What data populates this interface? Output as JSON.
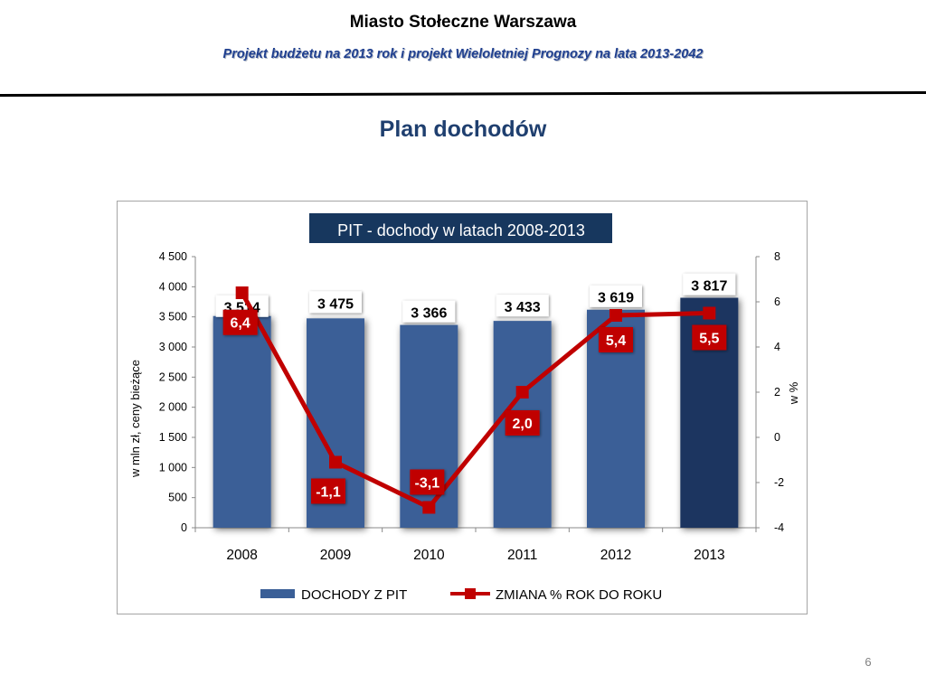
{
  "header": {
    "title": "Miasto Stołeczne Warszawa",
    "subtitle": "Projekt budżetu na 2013 rok i projekt Wieloletniej Prognozy na lata 2013-2042"
  },
  "slide": {
    "title": "Plan dochodów",
    "page_number": "6"
  },
  "colors": {
    "bar": "#3a5f97",
    "bar_highlight": "#1a3560",
    "line": "#c00000",
    "title_box": "#17375e",
    "subtitle": "#1f3f8f"
  },
  "chart_data": {
    "type": "bar",
    "title": "PIT - dochody w latach 2008-2013",
    "categories": [
      "2008",
      "2009",
      "2010",
      "2011",
      "2012",
      "2013"
    ],
    "ylabel": "w mln zł, ceny bieżące",
    "y2label": "w %",
    "ylim": [
      0,
      4500
    ],
    "y2lim": [
      -4,
      8
    ],
    "yticks": [
      "0",
      "500",
      "1 000",
      "1 500",
      "2 000",
      "2 500",
      "3 000",
      "3 500",
      "4 000",
      "4 500"
    ],
    "y2ticks": [
      "-4",
      "-2",
      "0",
      "2",
      "4",
      "6",
      "8"
    ],
    "series": [
      {
        "name": "DOCHODY Z PIT",
        "type": "bar",
        "values": [
          3514,
          3475,
          3366,
          3433,
          3619,
          3817
        ],
        "labels": [
          "3 514",
          "3 475",
          "3 366",
          "3 433",
          "3 619",
          "3 817"
        ]
      },
      {
        "name": "ZMIANA % ROK DO ROKU",
        "type": "line",
        "axis": "secondary",
        "values": [
          6.4,
          -1.1,
          -3.1,
          2.0,
          5.4,
          5.5
        ],
        "labels": [
          "6,4",
          "-1,1",
          "-3,1",
          "2,0",
          "5,4",
          "5,5"
        ]
      }
    ],
    "legend_position": "bottom",
    "grid": false
  }
}
